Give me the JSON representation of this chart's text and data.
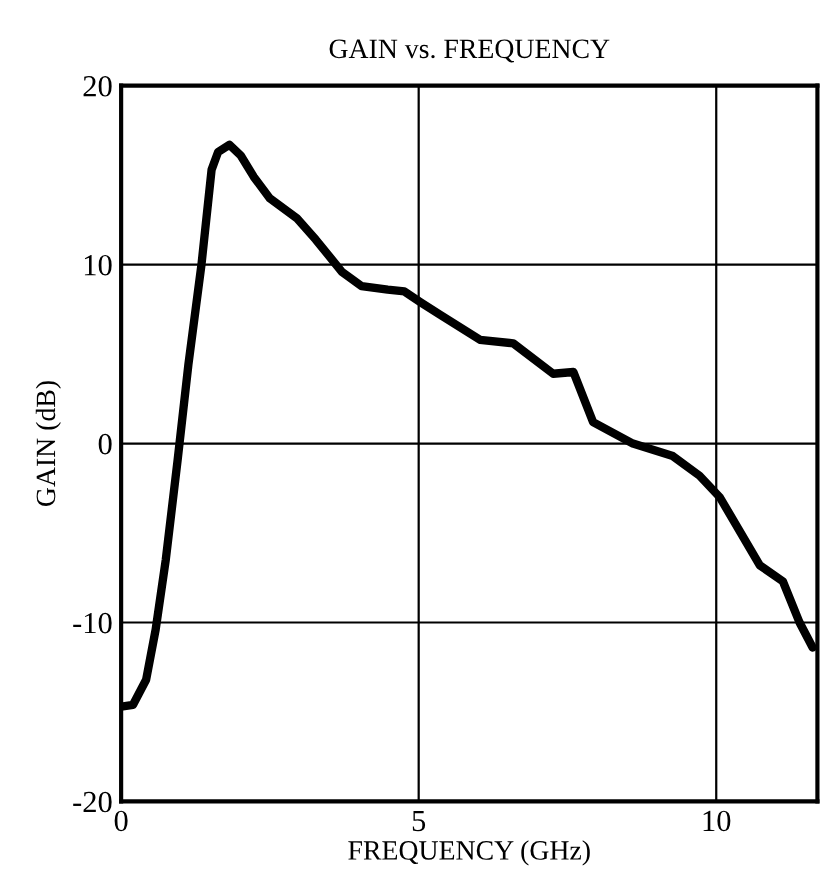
{
  "chart_data": {
    "type": "line",
    "title": "GAIN vs. FREQUENCY",
    "xlabel": "FREQUENCY (GHz)",
    "ylabel": "GAIN (dB)",
    "series": [
      {
        "color": "#000000",
        "x": [
          0,
          0.2,
          0.42,
          0.58,
          0.75,
          0.95,
          1.13,
          1.35,
          1.52,
          1.63,
          1.82,
          2.01,
          2.23,
          2.5,
          2.95,
          3.27,
          3.71,
          4.04,
          4.48,
          4.76,
          5.03,
          5.36,
          6.03,
          6.59,
          7.26,
          7.6,
          7.93,
          8.6,
          9.27,
          9.72,
          10.06,
          10.73,
          11.12,
          11.4,
          11.62
        ],
        "values": [
          -14.7,
          -14.6,
          -13.2,
          -10.4,
          -6.5,
          -0.9,
          4.4,
          10.0,
          15.3,
          16.3,
          16.7,
          16.1,
          14.9,
          13.7,
          12.6,
          11.4,
          9.6,
          8.8,
          8.6,
          8.5,
          7.9,
          7.2,
          5.8,
          5.6,
          3.9,
          4.0,
          1.2,
          0,
          -0.7,
          -1.8,
          -3.0,
          -6.8,
          -7.7,
          -10.0,
          -11.4
        ]
      }
    ],
    "xlim": [
      0,
      11.7
    ],
    "ylim": [
      -20,
      20
    ],
    "xticks": [
      0,
      5,
      10
    ],
    "yticks": [
      -20,
      -10,
      0,
      10,
      20
    ],
    "grid": true,
    "legend": false,
    "marker": "none",
    "line_style": "solid"
  }
}
